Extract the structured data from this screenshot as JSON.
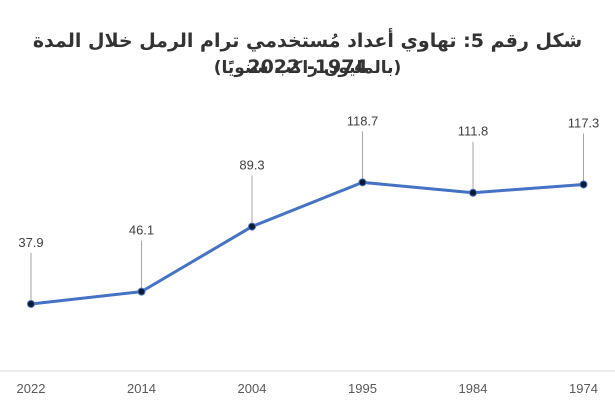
{
  "chart_data": {
    "type": "line",
    "title": "شكل رقم 5: تهاوي أعداد مُستخدمي ترام الرمل خلال المدة 1974- 2022",
    "subtitle": "(بالمليون راكب سنويًا)",
    "categories": [
      "2022",
      "2014",
      "2004",
      "1995",
      "1984",
      "1974"
    ],
    "series": [
      {
        "values": [
          37.9,
          46.1,
          89.3,
          118.7,
          111.8,
          117.3
        ],
        "color": "#4472C4"
      }
    ],
    "data_labels": [
      "37.9",
      "46.1",
      "89.3",
      "118.7",
      "111.8",
      "117.3"
    ],
    "ylim": [
      0,
      150
    ],
    "grid": false,
    "legend": "none"
  }
}
